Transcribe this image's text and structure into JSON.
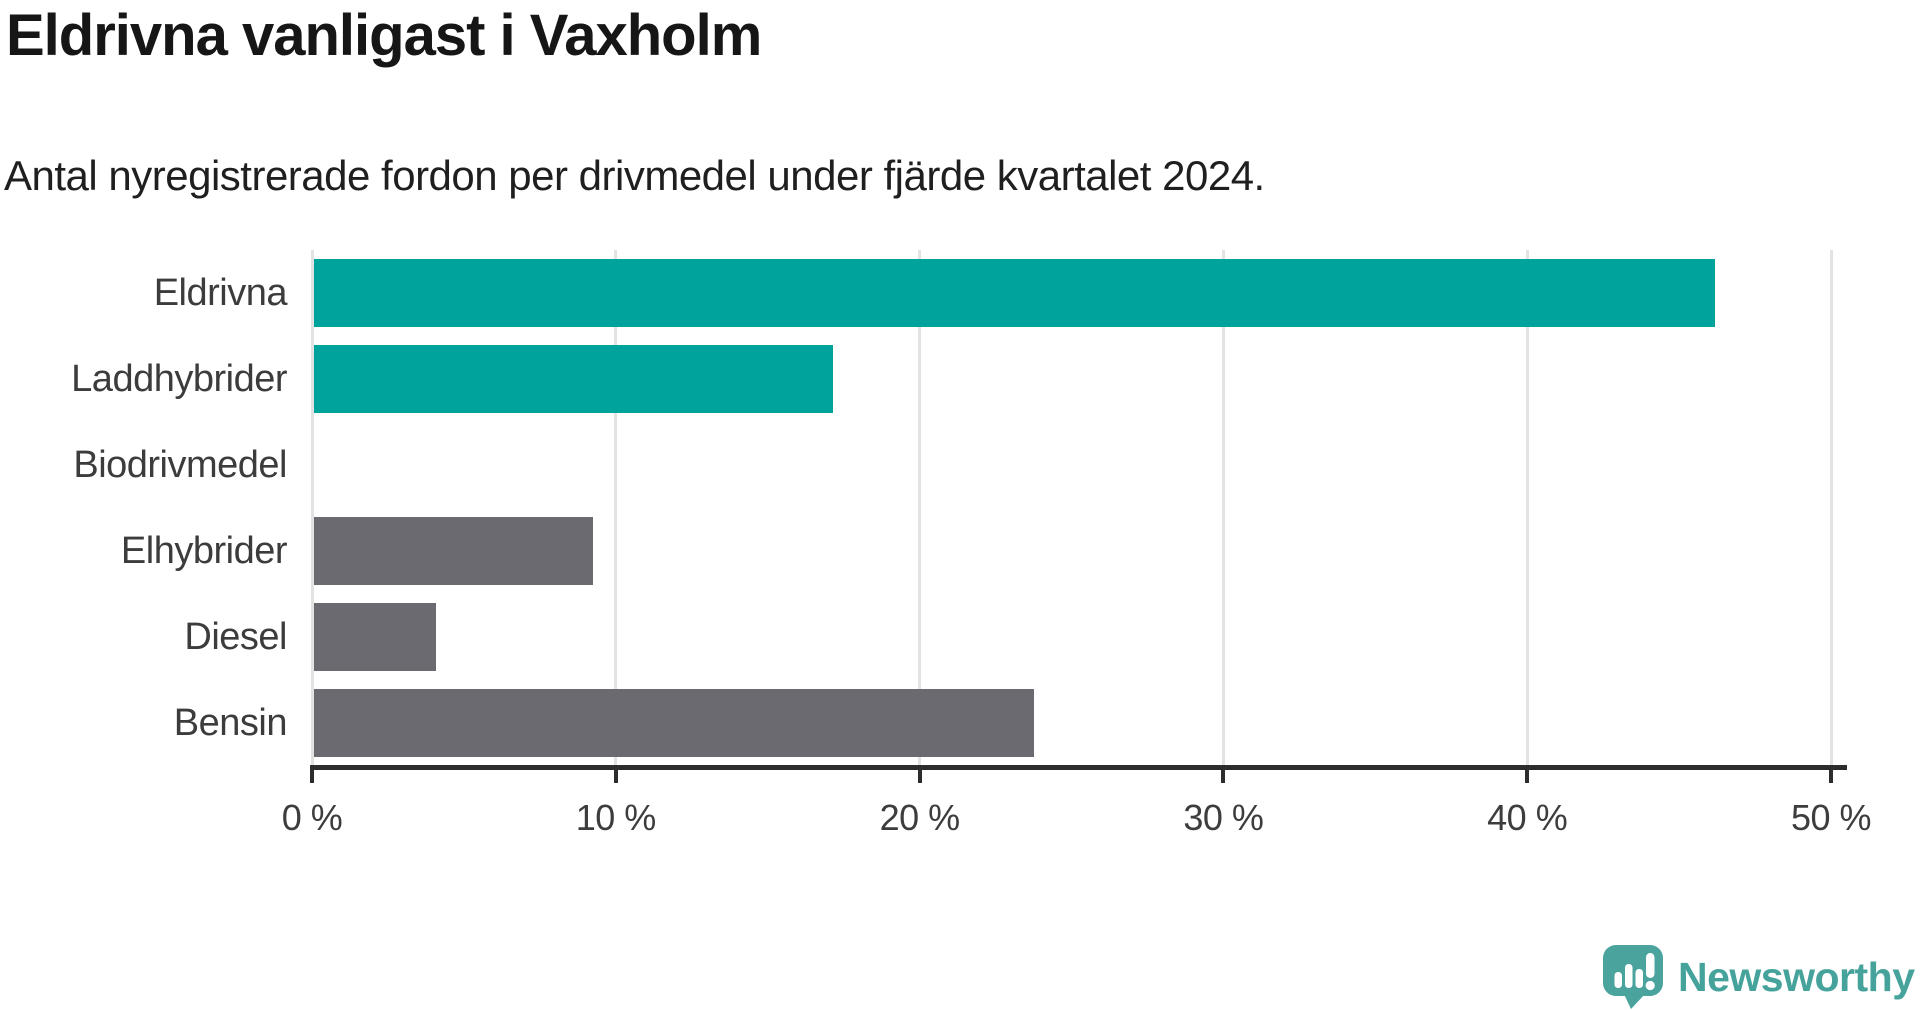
{
  "header": {
    "title": "Eldrivna vanligast i Vaxholm",
    "subtitle": "Antal nyregistrerade fordon per drivmedel under fjärde kvartalet 2024."
  },
  "chart_data": {
    "type": "bar",
    "orientation": "horizontal",
    "title": "Eldrivna vanligast i Vaxholm",
    "subtitle": "Antal nyregistrerade fordon per drivmedel under fjärde kvartalet 2024.",
    "categories": [
      "Eldrivna",
      "Laddhybrider",
      "Biodrivmedel",
      "Elhybrider",
      "Diesel",
      "Bensin"
    ],
    "values": [
      46.1,
      17.1,
      0,
      9.2,
      4.0,
      23.7
    ],
    "unit": "%",
    "bar_colors": [
      "#00a39b",
      "#00a39b",
      "#00a39b",
      "#6a6a70",
      "#6a6a70",
      "#6a6a70"
    ],
    "xlim": [
      0,
      50
    ],
    "x_ticks": [
      0,
      10,
      20,
      30,
      40,
      50
    ],
    "x_tick_labels": [
      "0 %",
      "10 %",
      "20 %",
      "30 %",
      "40 %",
      "50 %"
    ],
    "grid": "vertical-gridlines-on",
    "legend": "none"
  },
  "footer": {
    "brand": "Newsworthy"
  },
  "colors": {
    "accent_teal": "#00a39b",
    "neutral_gray": "#6a6a70",
    "logo_teal": "#4aa49d",
    "gridline": "#e2e2e2",
    "axis": "#2d2d2d"
  }
}
